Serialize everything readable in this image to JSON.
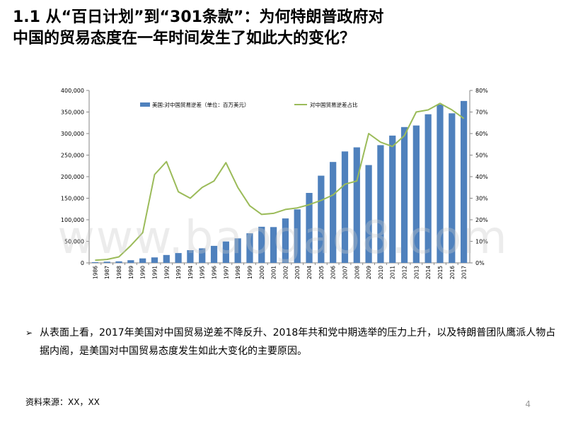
{
  "header": {
    "title_line1": "1.1 从“百日计划”到“301条款”：为何特朗普政府对",
    "title_line2": "中国的贸易态度在一年时间发生了如此大的变化？"
  },
  "chart_data": {
    "type": "bar+line",
    "categories": [
      "1986",
      "1987",
      "1988",
      "1989",
      "1990",
      "1991",
      "1992",
      "1993",
      "1994",
      "1995",
      "1996",
      "1997",
      "1998",
      "1999",
      "2000",
      "2001",
      "2002",
      "2003",
      "2004",
      "2005",
      "2006",
      "2007",
      "2008",
      "2009",
      "2010",
      "2011",
      "2012",
      "2013",
      "2014",
      "2015",
      "2016",
      "2017"
    ],
    "series": [
      {
        "name": "美国:对中国贸易逆差（单位：百万美元）",
        "type": "bar",
        "axis": "left",
        "color": "#4f81bd",
        "values": [
          1700,
          2800,
          3500,
          6200,
          10400,
          12700,
          18300,
          22800,
          29500,
          33800,
          39500,
          49700,
          56900,
          68700,
          83800,
          83100,
          103100,
          124100,
          162300,
          202300,
          234100,
          258500,
          268000,
          226900,
          273100,
          295300,
          315100,
          318700,
          344800,
          367300,
          347000,
          375600
        ]
      },
      {
        "name": "对中国贸易逆差占比",
        "type": "line",
        "axis": "right",
        "color": "#9bbb59",
        "values": [
          1.2,
          1.6,
          2.8,
          8.0,
          14.0,
          41.0,
          47.0,
          33.0,
          30.0,
          35.0,
          38.0,
          46.5,
          35.0,
          26.5,
          22.5,
          23.0,
          24.8,
          25.5,
          27.0,
          29.0,
          31.5,
          36.5,
          38.0,
          60.0,
          56.0,
          54.0,
          59.0,
          70.0,
          71.0,
          74.0,
          71.0,
          67.0
        ]
      }
    ],
    "left_axis": {
      "min": 0,
      "max": 400000,
      "step": 50000,
      "tick_labels": [
        "0",
        "50,000",
        "100,000",
        "150,000",
        "200,000",
        "250,000",
        "300,000",
        "350,000",
        "400,000"
      ]
    },
    "right_axis": {
      "min": 0,
      "max": 80,
      "step": 10,
      "tick_labels": [
        "0%",
        "10%",
        "20%",
        "30%",
        "40%",
        "50%",
        "60%",
        "70%",
        "80%"
      ]
    },
    "legend_position": "top-left",
    "grid": false
  },
  "watermark": "www.baogao8.com",
  "body": {
    "bullet_mark": "➢",
    "bullet_text": "从表面上看，2017年美国对中国贸易逆差不降反升、2018年共和党中期选举的压力上升，以及特朗普团队鹰派人物占据内阁，是美国对中国贸易态度发生如此大变化的主要原因。"
  },
  "footer": {
    "source": "资料来源：XX，XX",
    "page_number": "4"
  }
}
